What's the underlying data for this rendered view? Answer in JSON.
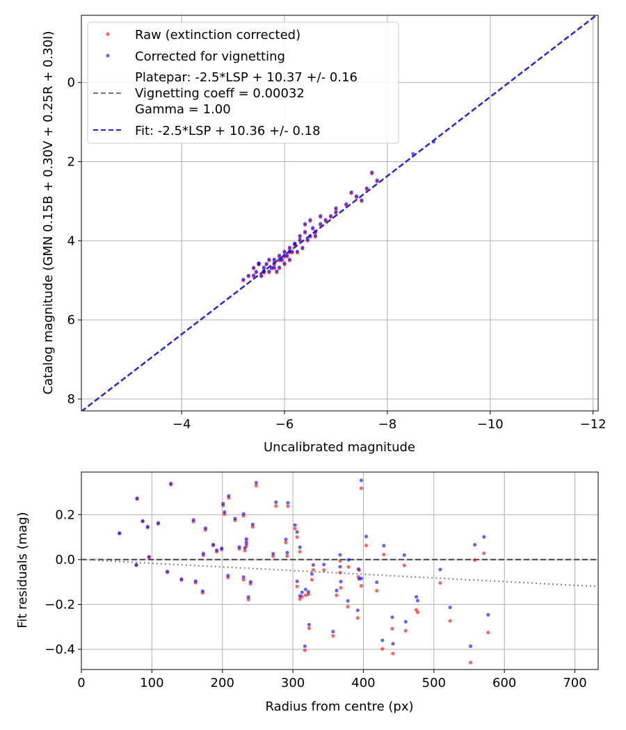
{
  "chart_data": [
    {
      "type": "scatter",
      "xlabel": "Uncalibrated magnitude",
      "ylabel": "Catalog magnitude (GMN 0.15B + 0.30V + 0.25R + 0.30I)",
      "xlim": [
        -2.05,
        -12.1
      ],
      "ylim": [
        8.3,
        -1.7
      ],
      "x_ticks": [
        -4,
        -6,
        -8,
        -10,
        -12
      ],
      "x_tick_labels": [
        "−4",
        "−6",
        "−8",
        "−10",
        "−12"
      ],
      "y_ticks": [
        0,
        2,
        4,
        6,
        8
      ],
      "y_tick_labels": [
        "0",
        "2",
        "4",
        "6",
        "8"
      ],
      "grid": true,
      "legend_position": "top-left",
      "legend": {
        "raw": "Raw (extinction corrected)",
        "corrected": "Corrected for vignetting",
        "platepar_lines": [
          "Platepar: -2.5*LSP + 10.37 +/- 0.16",
          "Vignetting coeff = 0.00032",
          "Gamma = 1.00"
        ],
        "fit": "Fit: -2.5*LSP + 10.36 +/- 0.18"
      },
      "series": [
        {
          "name": "Raw (extinction corrected)",
          "color": "#ff0000",
          "x": [
            -5.2,
            -5.3,
            -5.4,
            -5.45,
            -5.5,
            -5.55,
            -5.6,
            -5.6,
            -5.65,
            -5.7,
            -5.7,
            -5.75,
            -5.8,
            -5.8,
            -5.85,
            -5.9,
            -5.9,
            -5.95,
            -6.0,
            -6.0,
            -6.05,
            -6.1,
            -6.1,
            -6.15,
            -6.2,
            -6.25,
            -6.3,
            -6.35,
            -6.4,
            -6.45,
            -6.5,
            -6.55,
            -6.6,
            -6.7,
            -6.8,
            -6.9,
            -7.0,
            -7.2,
            -7.4,
            -7.6,
            -7.7,
            -5.4,
            -5.5,
            -5.6,
            -5.9,
            -6.0,
            -6.2,
            -6.3,
            -6.5,
            -6.6,
            -6.7,
            -7.0,
            -7.3,
            -7.5,
            -7.8,
            -5.8,
            -6.1,
            -6.4
          ],
          "y": [
            5.0,
            4.9,
            4.7,
            4.8,
            4.6,
            4.9,
            4.7,
            4.8,
            4.6,
            4.5,
            4.8,
            4.7,
            4.5,
            4.6,
            4.8,
            4.4,
            4.7,
            4.5,
            4.3,
            4.6,
            4.4,
            4.2,
            4.5,
            4.3,
            4.1,
            4.3,
            4.0,
            4.2,
            3.8,
            4.0,
            3.9,
            3.7,
            3.8,
            3.6,
            3.5,
            3.4,
            3.3,
            3.1,
            2.9,
            2.7,
            2.3,
            4.9,
            4.6,
            4.8,
            4.5,
            4.4,
            4.1,
            3.9,
            3.5,
            3.9,
            3.4,
            3.2,
            2.8,
            3.0,
            2.5,
            4.7,
            4.3,
            3.6
          ]
        },
        {
          "name": "Corrected for vignetting",
          "color": "#0000ff",
          "x": [
            -5.2,
            -5.3,
            -5.4,
            -5.45,
            -5.5,
            -5.55,
            -5.6,
            -5.6,
            -5.65,
            -5.7,
            -5.7,
            -5.75,
            -5.8,
            -5.8,
            -5.85,
            -5.9,
            -5.9,
            -5.95,
            -6.0,
            -6.0,
            -6.05,
            -6.1,
            -6.1,
            -6.15,
            -6.2,
            -6.25,
            -6.3,
            -6.35,
            -6.4,
            -6.45,
            -6.5,
            -6.55,
            -6.6,
            -6.7,
            -6.8,
            -6.9,
            -7.0,
            -7.2,
            -7.4,
            -7.6,
            -7.7,
            -5.4,
            -5.5,
            -5.6,
            -5.9,
            -6.0,
            -6.2,
            -6.3,
            -6.5,
            -6.6,
            -6.7,
            -7.0,
            -7.3,
            -7.5,
            -7.8,
            -5.8,
            -6.1,
            -6.4,
            -8.5,
            -8.9
          ],
          "y": [
            4.98,
            4.88,
            4.68,
            4.78,
            4.57,
            4.88,
            4.67,
            4.77,
            4.58,
            4.47,
            4.77,
            4.68,
            4.47,
            4.57,
            4.77,
            4.37,
            4.67,
            4.47,
            4.27,
            4.57,
            4.37,
            4.17,
            4.47,
            4.27,
            4.07,
            4.27,
            3.97,
            4.17,
            3.77,
            3.97,
            3.87,
            3.67,
            3.77,
            3.57,
            3.47,
            3.37,
            3.27,
            3.07,
            2.87,
            2.67,
            2.27,
            4.87,
            4.57,
            4.77,
            4.47,
            4.37,
            4.07,
            3.87,
            3.47,
            3.87,
            3.37,
            3.17,
            2.77,
            2.97,
            2.47,
            4.67,
            4.27,
            3.57,
            1.8,
            1.5
          ]
        }
      ],
      "lines": [
        {
          "name": "Platepar: -2.5*LSP + 10.37 +/- 0.16",
          "color": "#777777",
          "style": "dashed",
          "x": [
            -2.05,
            -12.1
          ],
          "y": [
            8.32,
            -1.73
          ]
        },
        {
          "name": "Fit: -2.5*LSP + 10.36 +/- 0.18",
          "color": "#2222dd",
          "style": "dashed",
          "x": [
            -2.05,
            -12.1
          ],
          "y": [
            8.31,
            -1.74
          ]
        }
      ]
    },
    {
      "type": "scatter",
      "xlabel": "Radius from centre (px)",
      "ylabel": "Fit residuals (mag)",
      "xlim": [
        0,
        733
      ],
      "ylim": [
        -0.49,
        0.39
      ],
      "x_ticks": [
        0,
        100,
        200,
        300,
        400,
        500,
        600,
        700
      ],
      "x_tick_labels": [
        "0",
        "100",
        "200",
        "300",
        "400",
        "500",
        "600",
        "700"
      ],
      "y_ticks": [
        0.2,
        0.0,
        -0.2,
        -0.4
      ],
      "y_tick_labels": [
        "0.2",
        "0.0",
        "−0.2",
        "−0.4"
      ],
      "grid": true,
      "series": [
        {
          "name": "Raw (extinction corrected)",
          "color": "#ff0000",
          "x": [
            54,
            78,
            79,
            87,
            94,
            96,
            109,
            122,
            127,
            142,
            159,
            162,
            172,
            173,
            176,
            187,
            192,
            199,
            201,
            203,
            208,
            209,
            218,
            224,
            230,
            230,
            232,
            234,
            234,
            237,
            240,
            243,
            248,
            272,
            276,
            290,
            292,
            293,
            303,
            306,
            306,
            310,
            310,
            313,
            317,
            318,
            322,
            323,
            327,
            329,
            344,
            357,
            362,
            367,
            367,
            368,
            378,
            379,
            392,
            393,
            394,
            397,
            397,
            404,
            419,
            427,
            429,
            441,
            442,
            458,
            460,
            475,
            477,
            509,
            523,
            552,
            558,
            571,
            577
          ],
          "y": [
            0.116,
            -0.026,
            0.27,
            0.17,
            0.143,
            0.009,
            0.159,
            -0.057,
            0.334,
            -0.091,
            0.169,
            -0.103,
            -0.148,
            0.019,
            0.132,
            0.063,
            0.035,
            0.045,
            0.241,
            0.203,
            -0.08,
            0.275,
            0.175,
            0.048,
            -0.09,
            0.195,
            0.04,
            0.082,
            0.06,
            -0.178,
            -0.108,
            0.146,
            0.33,
            0.015,
            0.239,
            0.076,
            0.016,
            0.238,
            0.138,
            -0.12,
            0.1,
            -0.176,
            0.035,
            -0.165,
            -0.404,
            -0.159,
            -0.155,
            -0.306,
            -0.09,
            -0.046,
            -0.047,
            -0.34,
            -0.159,
            -0.006,
            -0.058,
            -0.126,
            -0.21,
            -0.033,
            -0.26,
            -0.077,
            -0.047,
            0.318,
            -0.117,
            0.063,
            -0.139,
            -0.398,
            0.022,
            -0.308,
            -0.419,
            -0.026,
            -0.317,
            -0.224,
            -0.235,
            -0.104,
            -0.273,
            -0.459,
            -0.002,
            0.028,
            -0.325
          ]
        },
        {
          "name": "Corrected for vignetting",
          "color": "#0000ff",
          "x": [
            54,
            78,
            79,
            87,
            94,
            96,
            109,
            122,
            127,
            142,
            159,
            162,
            172,
            173,
            176,
            187,
            192,
            199,
            201,
            203,
            208,
            209,
            218,
            224,
            230,
            230,
            232,
            234,
            234,
            237,
            240,
            243,
            248,
            272,
            276,
            290,
            292,
            293,
            303,
            306,
            306,
            310,
            310,
            313,
            317,
            318,
            322,
            323,
            327,
            329,
            344,
            357,
            362,
            367,
            367,
            368,
            378,
            379,
            392,
            393,
            394,
            397,
            397,
            404,
            419,
            427,
            429,
            441,
            442,
            458,
            460,
            475,
            477,
            509,
            523,
            552,
            558,
            571,
            577
          ],
          "y": [
            0.118,
            -0.023,
            0.273,
            0.172,
            0.147,
            0.013,
            0.164,
            -0.053,
            0.339,
            -0.087,
            0.177,
            -0.096,
            -0.14,
            0.027,
            0.14,
            0.067,
            0.042,
            0.05,
            0.249,
            0.212,
            -0.071,
            0.284,
            0.183,
            0.056,
            -0.078,
            0.204,
            0.052,
            0.092,
            0.072,
            -0.167,
            -0.099,
            0.157,
            0.343,
            0.026,
            0.256,
            0.09,
            0.031,
            0.253,
            0.154,
            -0.097,
            0.123,
            -0.162,
            0.055,
            -0.146,
            -0.386,
            -0.133,
            -0.144,
            -0.29,
            -0.064,
            -0.024,
            -0.022,
            -0.321,
            -0.138,
            0.021,
            -0.032,
            -0.098,
            -0.184,
            -0.001,
            -0.226,
            -0.042,
            -0.086,
            0.353,
            -0.084,
            0.103,
            -0.101,
            -0.36,
            0.062,
            -0.257,
            -0.375,
            0.02,
            -0.277,
            -0.166,
            -0.183,
            -0.044,
            -0.213,
            -0.386,
            0.066,
            0.101,
            -0.246
          ]
        }
      ],
      "lines": [
        {
          "name": "zero",
          "color": "#555555",
          "style": "dashed",
          "x": [
            0,
            733
          ],
          "y": [
            0,
            0
          ]
        },
        {
          "name": "vignetting",
          "color": "#888888",
          "style": "dotted",
          "x": [
            0,
            733
          ],
          "y": [
            0,
            -0.12
          ]
        }
      ]
    }
  ]
}
